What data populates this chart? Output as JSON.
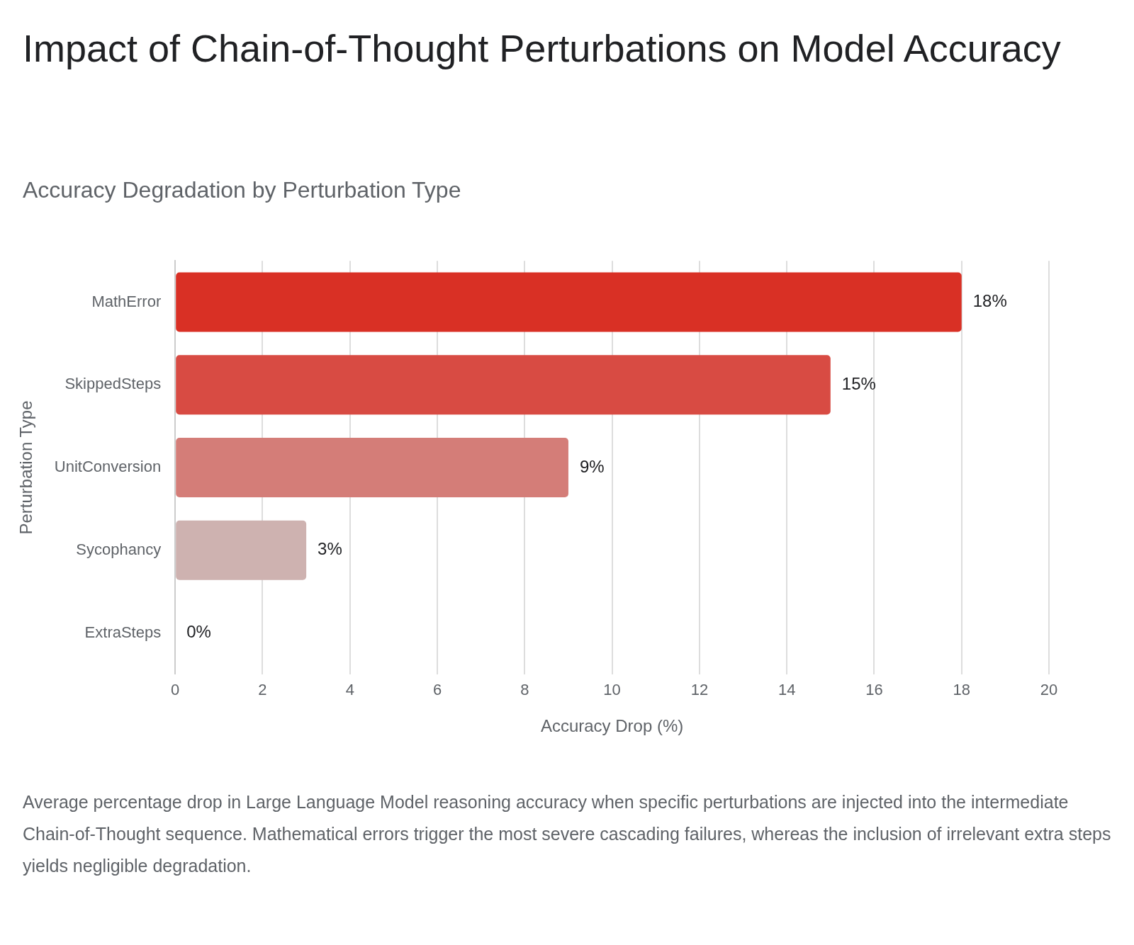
{
  "chart_data": {
    "type": "bar",
    "orientation": "horizontal",
    "title": "Impact of Chain-of-Thought Perturbations on Model Accuracy",
    "subtitle": "Accuracy Degradation by Perturbation Type",
    "xlabel": "Accuracy Drop (%)",
    "ylabel": "Perturbation Type",
    "categories": [
      "MathError",
      "SkippedSteps",
      "UnitConversion",
      "Sycophancy",
      "ExtraSteps"
    ],
    "values": [
      18,
      15,
      9,
      3,
      0
    ],
    "colors": [
      "#d93025",
      "#d84b43",
      "#d47d78",
      "#ceb2b0",
      "#cccccc"
    ],
    "value_labels": [
      "18%",
      "15%",
      "9%",
      "3%",
      "0%"
    ],
    "xlim": [
      0,
      20
    ],
    "xticks": [
      0,
      2,
      4,
      6,
      8,
      10,
      12,
      14,
      16,
      18,
      20
    ],
    "grid": "x",
    "legend": false,
    "annotations": [
      "Average percentage drop in Large Language Model reasoning accuracy when specific perturbations are injected into the intermediate Chain-of-Thought sequence. Mathematical errors trigger the most severe cascading failures, whereas the inclusion of irrelevant extra steps yields negligible degradation."
    ]
  }
}
